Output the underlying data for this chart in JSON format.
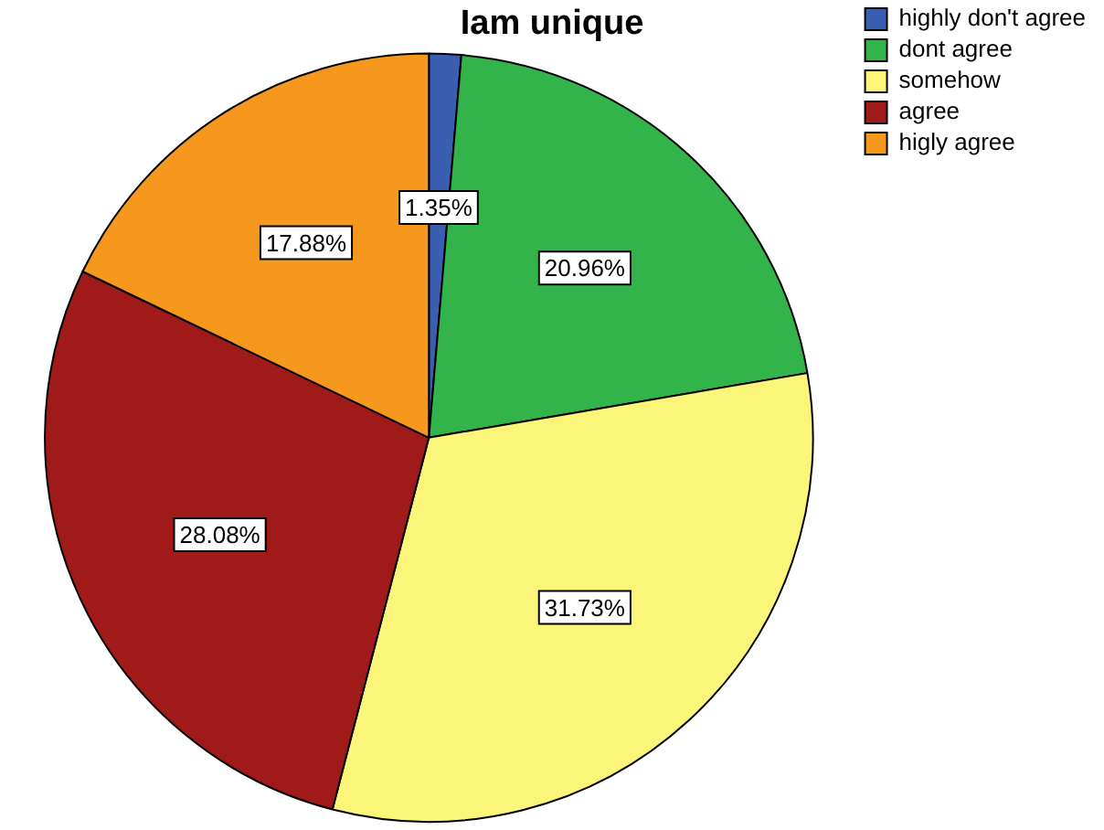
{
  "chart_data": {
    "type": "pie",
    "title": "Iam unique",
    "categories": [
      "highly don't agree",
      "dont agree",
      "somehow",
      "agree",
      "higly agree"
    ],
    "values": [
      1.35,
      20.96,
      31.73,
      28.08,
      17.88
    ],
    "colors": [
      "#3a5fb0",
      "#33b44a",
      "#fbf57a",
      "#a01a1a",
      "#f7981e"
    ],
    "value_labels": [
      "1.35%",
      "20.96%",
      "31.73%",
      "28.08%",
      "17.88%"
    ],
    "legend": "top right"
  }
}
